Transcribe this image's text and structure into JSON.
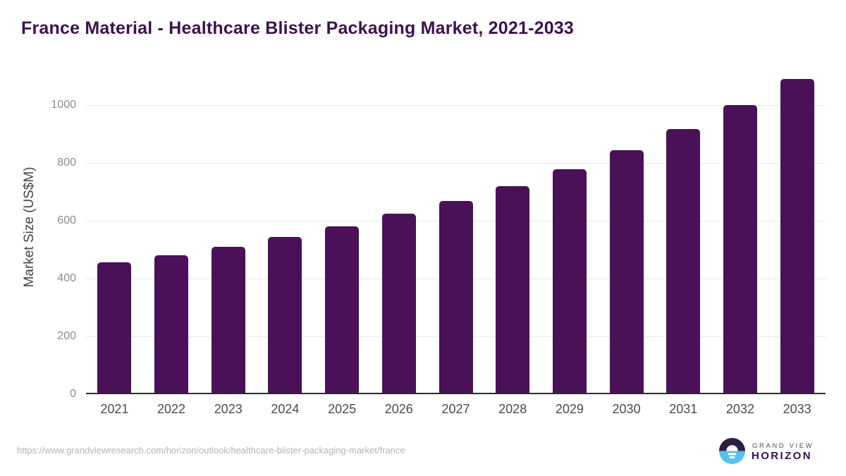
{
  "page": {
    "source_url": "https://www.grandviewresearch.com/horizon/outlook/healthcare-blister-packaging-market/france"
  },
  "chart_data": {
    "type": "bar",
    "title": "France Material - Healthcare Blister Packaging Market, 2021-2033",
    "categories": [
      "2021",
      "2022",
      "2023",
      "2024",
      "2025",
      "2026",
      "2027",
      "2028",
      "2029",
      "2030",
      "2031",
      "2032",
      "2033"
    ],
    "values": [
      457,
      480,
      510,
      544,
      581,
      624,
      670,
      721,
      778,
      844,
      917,
      1000,
      1092
    ],
    "xlabel": "",
    "ylabel": "Market Size (US$M)",
    "ylim": [
      0,
      1133
    ],
    "yticks": [
      0,
      200,
      400,
      600,
      800,
      1000
    ],
    "grid": true,
    "legend": "none",
    "bar_color": "#4a1158"
  },
  "branding": {
    "logo_line1": "GRAND VIEW",
    "logo_line2": "HORIZON",
    "icon_name": "horizon-sunrise-icon",
    "colors": {
      "title_purple": "#3d1152",
      "bar_purple": "#4a1158",
      "icon_dark_purple": "#2e1e45",
      "icon_sky_blue": "#55c3ee",
      "wordmark_purple": "#38104e"
    }
  }
}
